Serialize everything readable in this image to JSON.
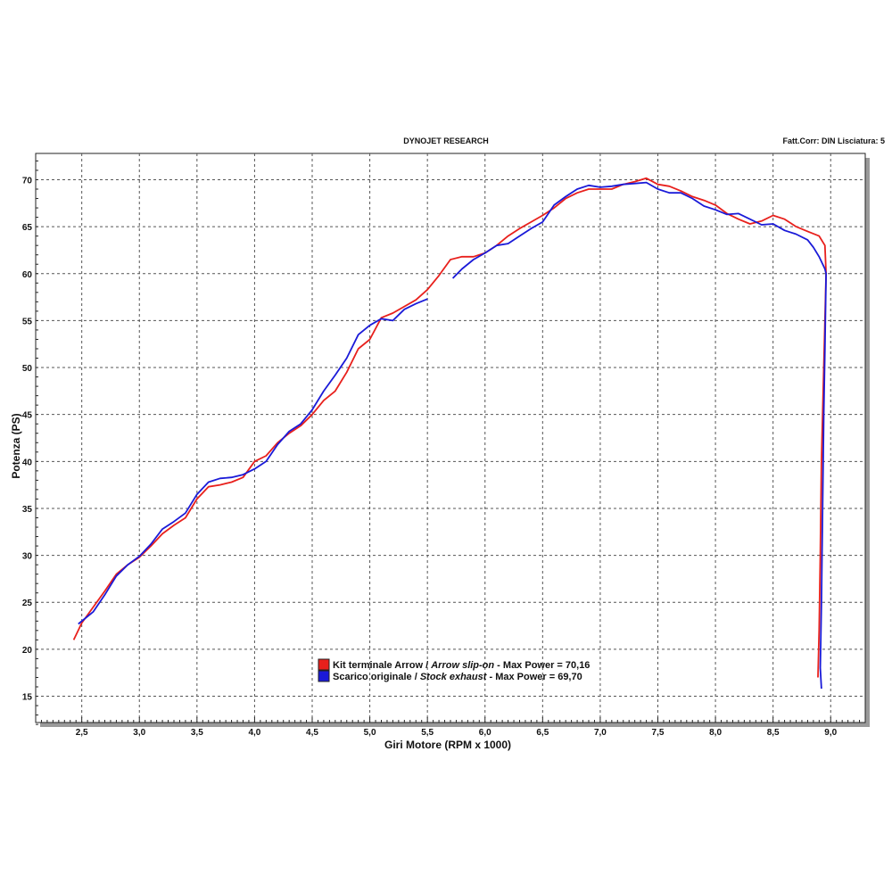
{
  "header": {
    "title": "DYNOJET RESEARCH",
    "info": "Fatt.Corr: DIN  Lisciatura: 5"
  },
  "chart_data": {
    "type": "line",
    "title": "DYNOJET RESEARCH",
    "xlabel": "Giri Motore (RPM x 1000)",
    "ylabel": "Potenza (PS)",
    "xlim": [
      2.1,
      9.3
    ],
    "ylim": [
      12.2,
      72.8
    ],
    "grid": true,
    "x_ticks": [
      2.5,
      3.0,
      3.5,
      4.0,
      4.5,
      5.0,
      5.5,
      6.0,
      6.5,
      7.0,
      7.5,
      8.0,
      8.5,
      9.0
    ],
    "x_tick_labels": [
      "2,5",
      "3,0",
      "3,5",
      "4,0",
      "4,5",
      "5,0",
      "5,5",
      "6,0",
      "6,5",
      "7,0",
      "7,5",
      "8,0",
      "8,5",
      "9,0"
    ],
    "y_ticks": [
      15,
      20,
      25,
      30,
      35,
      40,
      45,
      50,
      55,
      60,
      65,
      70
    ],
    "y_tick_labels": [
      "15",
      "20",
      "25",
      "30",
      "35",
      "40",
      "45",
      "50",
      "55",
      "60",
      "65",
      "70"
    ],
    "legend": [
      {
        "color": "#e8201c",
        "text": "Kit terminale Arrow / ",
        "italic": "Arrow slip-on",
        "suffix": " - Max Power = 70,16"
      },
      {
        "color": "#1a1ad8",
        "text": "Scarico originale / ",
        "italic": "Stock exhaust",
        "suffix": " - Max Power = 69,70"
      }
    ],
    "series": [
      {
        "name": "Kit terminale Arrow / Arrow slip-on",
        "color": "#e8201c",
        "points": [
          [
            2.43,
            21.0
          ],
          [
            2.5,
            22.8
          ],
          [
            2.6,
            24.5
          ],
          [
            2.7,
            26.2
          ],
          [
            2.8,
            28.0
          ],
          [
            2.9,
            29.0
          ],
          [
            3.0,
            29.8
          ],
          [
            3.1,
            31.0
          ],
          [
            3.2,
            32.3
          ],
          [
            3.3,
            33.2
          ],
          [
            3.4,
            34.0
          ],
          [
            3.5,
            36.0
          ],
          [
            3.6,
            37.3
          ],
          [
            3.7,
            37.5
          ],
          [
            3.8,
            37.8
          ],
          [
            3.9,
            38.3
          ],
          [
            4.0,
            40.0
          ],
          [
            4.1,
            40.6
          ],
          [
            4.2,
            42.0
          ],
          [
            4.3,
            43.0
          ],
          [
            4.4,
            43.8
          ],
          [
            4.5,
            45.0
          ],
          [
            4.6,
            46.5
          ],
          [
            4.7,
            47.5
          ],
          [
            4.8,
            49.5
          ],
          [
            4.9,
            52.0
          ],
          [
            5.0,
            53.0
          ],
          [
            5.1,
            55.3
          ],
          [
            5.2,
            55.8
          ],
          [
            5.3,
            56.5
          ],
          [
            5.4,
            57.2
          ],
          [
            5.5,
            58.3
          ],
          [
            5.6,
            59.8
          ],
          [
            5.7,
            61.5
          ],
          [
            5.8,
            61.8
          ],
          [
            5.9,
            61.8
          ],
          [
            6.0,
            62.2
          ],
          [
            6.1,
            63.0
          ],
          [
            6.2,
            64.0
          ],
          [
            6.3,
            64.8
          ],
          [
            6.4,
            65.5
          ],
          [
            6.5,
            66.2
          ],
          [
            6.6,
            67.0
          ],
          [
            6.7,
            68.0
          ],
          [
            6.8,
            68.6
          ],
          [
            6.9,
            69.0
          ],
          [
            7.0,
            69.0
          ],
          [
            7.1,
            69.0
          ],
          [
            7.2,
            69.5
          ],
          [
            7.3,
            69.8
          ],
          [
            7.4,
            70.16
          ],
          [
            7.5,
            69.5
          ],
          [
            7.6,
            69.3
          ],
          [
            7.7,
            68.8
          ],
          [
            7.8,
            68.2
          ],
          [
            7.9,
            67.8
          ],
          [
            8.0,
            67.3
          ],
          [
            8.1,
            66.4
          ],
          [
            8.2,
            65.8
          ],
          [
            8.3,
            65.3
          ],
          [
            8.4,
            65.6
          ],
          [
            8.5,
            66.2
          ],
          [
            8.6,
            65.8
          ],
          [
            8.7,
            65.0
          ],
          [
            8.8,
            64.5
          ],
          [
            8.9,
            64.0
          ],
          [
            8.95,
            63.0
          ],
          [
            8.96,
            60.0
          ],
          [
            8.94,
            50.0
          ],
          [
            8.92,
            40.0
          ],
          [
            8.91,
            30.0
          ],
          [
            8.9,
            22.0
          ],
          [
            8.89,
            17.0
          ]
        ]
      },
      {
        "name": "Scarico originale / Stock exhaust",
        "color": "#1a1ad8",
        "points": [
          [
            2.47,
            22.7
          ],
          [
            2.6,
            24.0
          ],
          [
            2.7,
            25.8
          ],
          [
            2.8,
            27.8
          ],
          [
            2.9,
            29.0
          ],
          [
            3.0,
            29.9
          ],
          [
            3.1,
            31.2
          ],
          [
            3.2,
            32.8
          ],
          [
            3.3,
            33.6
          ],
          [
            3.4,
            34.5
          ],
          [
            3.5,
            36.5
          ],
          [
            3.6,
            37.8
          ],
          [
            3.7,
            38.2
          ],
          [
            3.8,
            38.3
          ],
          [
            3.9,
            38.6
          ],
          [
            4.0,
            39.2
          ],
          [
            4.1,
            40.0
          ],
          [
            4.2,
            41.8
          ],
          [
            4.3,
            43.2
          ],
          [
            4.4,
            44.0
          ],
          [
            4.5,
            45.5
          ],
          [
            4.6,
            47.5
          ],
          [
            4.7,
            49.2
          ],
          [
            4.8,
            51.0
          ],
          [
            4.9,
            53.5
          ],
          [
            5.0,
            54.5
          ],
          [
            5.1,
            55.2
          ],
          [
            5.2,
            55.0
          ],
          [
            5.3,
            56.2
          ],
          [
            5.4,
            56.8
          ],
          [
            5.5,
            57.3
          ],
          null,
          [
            5.72,
            59.5
          ],
          [
            5.8,
            60.5
          ],
          [
            5.9,
            61.5
          ],
          [
            6.0,
            62.2
          ],
          [
            6.1,
            63.0
          ],
          [
            6.2,
            63.2
          ],
          [
            6.3,
            64.0
          ],
          [
            6.4,
            64.8
          ],
          [
            6.5,
            65.5
          ],
          [
            6.6,
            67.3
          ],
          [
            6.7,
            68.2
          ],
          [
            6.8,
            69.0
          ],
          [
            6.9,
            69.4
          ],
          [
            7.0,
            69.2
          ],
          [
            7.1,
            69.3
          ],
          [
            7.2,
            69.5
          ],
          [
            7.3,
            69.6
          ],
          [
            7.4,
            69.7
          ],
          [
            7.5,
            69.0
          ],
          [
            7.6,
            68.6
          ],
          [
            7.7,
            68.6
          ],
          [
            7.8,
            68.0
          ],
          [
            7.9,
            67.2
          ],
          [
            8.0,
            66.8
          ],
          [
            8.1,
            66.3
          ],
          [
            8.2,
            66.4
          ],
          [
            8.3,
            65.8
          ],
          [
            8.4,
            65.2
          ],
          [
            8.5,
            65.3
          ],
          [
            8.6,
            64.6
          ],
          [
            8.7,
            64.2
          ],
          [
            8.8,
            63.6
          ],
          [
            8.85,
            62.8
          ],
          [
            8.9,
            61.8
          ],
          [
            8.95,
            60.5
          ],
          [
            8.96,
            60.0
          ],
          [
            8.95,
            52.0
          ],
          [
            8.94,
            45.0
          ],
          [
            8.93,
            35.0
          ],
          [
            8.92,
            25.0
          ],
          [
            8.91,
            18.0
          ],
          [
            8.92,
            15.8
          ]
        ]
      }
    ]
  }
}
